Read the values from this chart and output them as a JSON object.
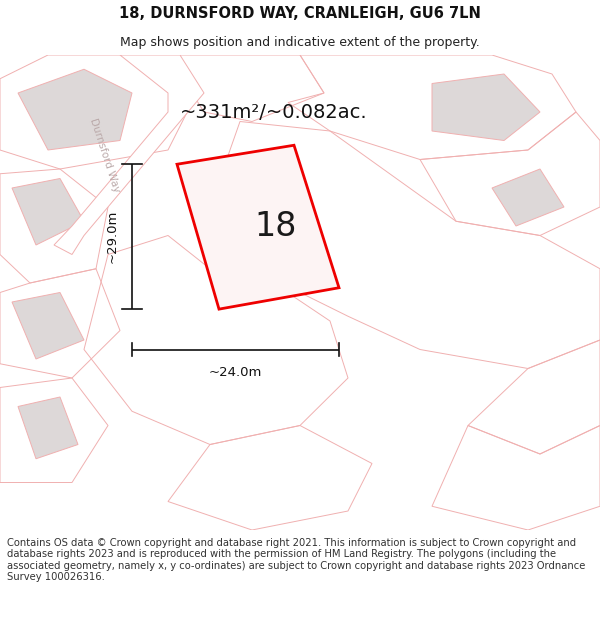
{
  "title": "18, DURNSFORD WAY, CRANLEIGH, GU6 7LN",
  "subtitle": "Map shows position and indicative extent of the property.",
  "area_text": "~331m²/~0.082ac.",
  "number_label": "18",
  "dim_height": "~29.0m",
  "dim_width": "~24.0m",
  "footer": "Contains OS data © Crown copyright and database right 2021. This information is subject to Crown copyright and database rights 2023 and is reproduced with the permission of HM Land Registry. The polygons (including the associated geometry, namely x, y co-ordinates) are subject to Crown copyright and database rights 2023 Ordnance Survey 100026316.",
  "bg_color": "#ffffff",
  "map_bg": "#faf8f8",
  "outline_color": "#f0b0b0",
  "highlight_color": "#ee0000",
  "highlight_fill": "#fdf4f4",
  "building_fill": "#ddd8d8",
  "title_fontsize": 10.5,
  "subtitle_fontsize": 9,
  "area_fontsize": 14,
  "number_fontsize": 24,
  "dim_fontsize": 9.5,
  "footer_fontsize": 7.2,
  "street_label": "Durnsford Way",
  "street_label_fontsize": 7.5,
  "street_label_color": "#bbaaaa"
}
